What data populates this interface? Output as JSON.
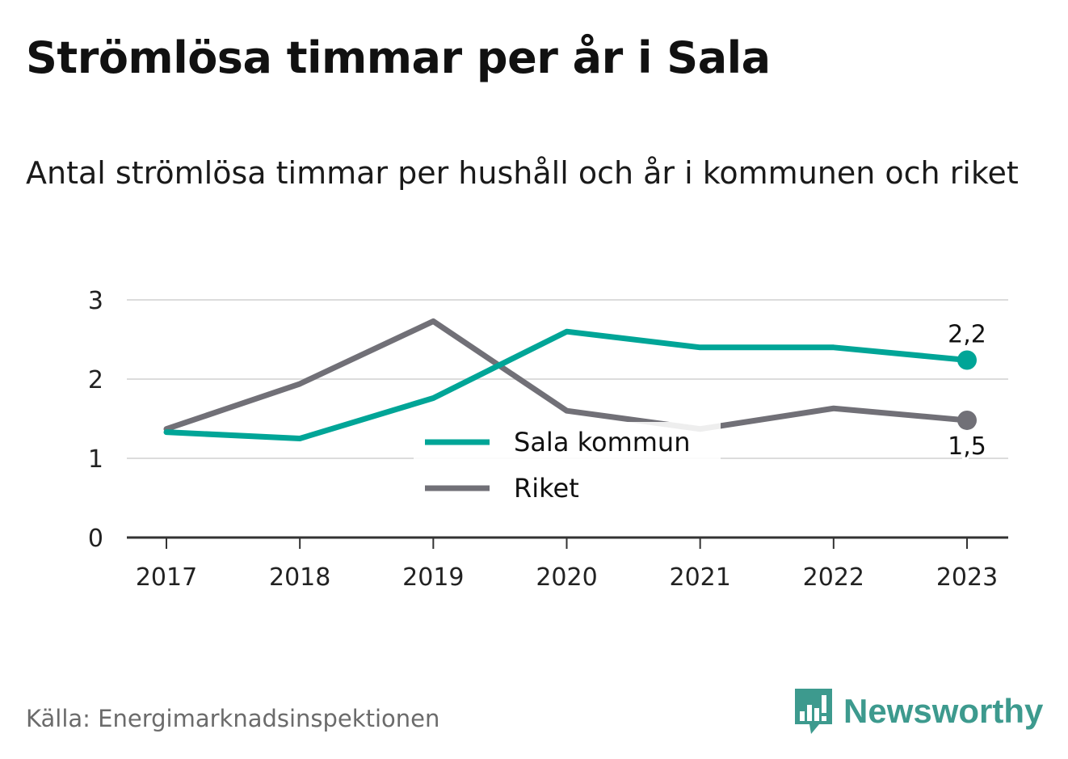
{
  "header": {
    "title": "Strömlösa timmar per år i Sala",
    "subtitle": "Antal strömlösa timmar per hushåll och år i kommunen och riket"
  },
  "footer": {
    "source": "Källa: Energimarknadsinspektionen",
    "brand": "Newsworthy"
  },
  "colors": {
    "sala": "#00a597",
    "riket": "#717077",
    "grid": "#dcdcdc",
    "axis": "#333333",
    "brand": "#3d9a8e"
  },
  "icons": {
    "brand_logo": "bar-chart-speech-bubble-icon"
  },
  "chart_data": {
    "type": "line",
    "title": "Strömlösa timmar per år i Sala",
    "subtitle": "Antal strömlösa timmar per hushåll och år i kommunen och riket",
    "xlabel": "",
    "ylabel": "",
    "x": [
      "2017",
      "2018",
      "2019",
      "2020",
      "2021",
      "2022",
      "2023"
    ],
    "ylim": [
      0,
      3
    ],
    "yticks": [
      "0",
      "1",
      "2",
      "3"
    ],
    "grid": true,
    "legend_placement": "center-bottom",
    "series": [
      {
        "name": "Sala kommun",
        "values": [
          1.33,
          1.25,
          1.76,
          2.6,
          2.4,
          2.4,
          2.24
        ],
        "end_label": "2,2"
      },
      {
        "name": "Riket",
        "values": [
          1.37,
          1.94,
          2.73,
          1.6,
          1.37,
          1.63,
          1.48
        ],
        "end_label": "1,5"
      }
    ]
  }
}
